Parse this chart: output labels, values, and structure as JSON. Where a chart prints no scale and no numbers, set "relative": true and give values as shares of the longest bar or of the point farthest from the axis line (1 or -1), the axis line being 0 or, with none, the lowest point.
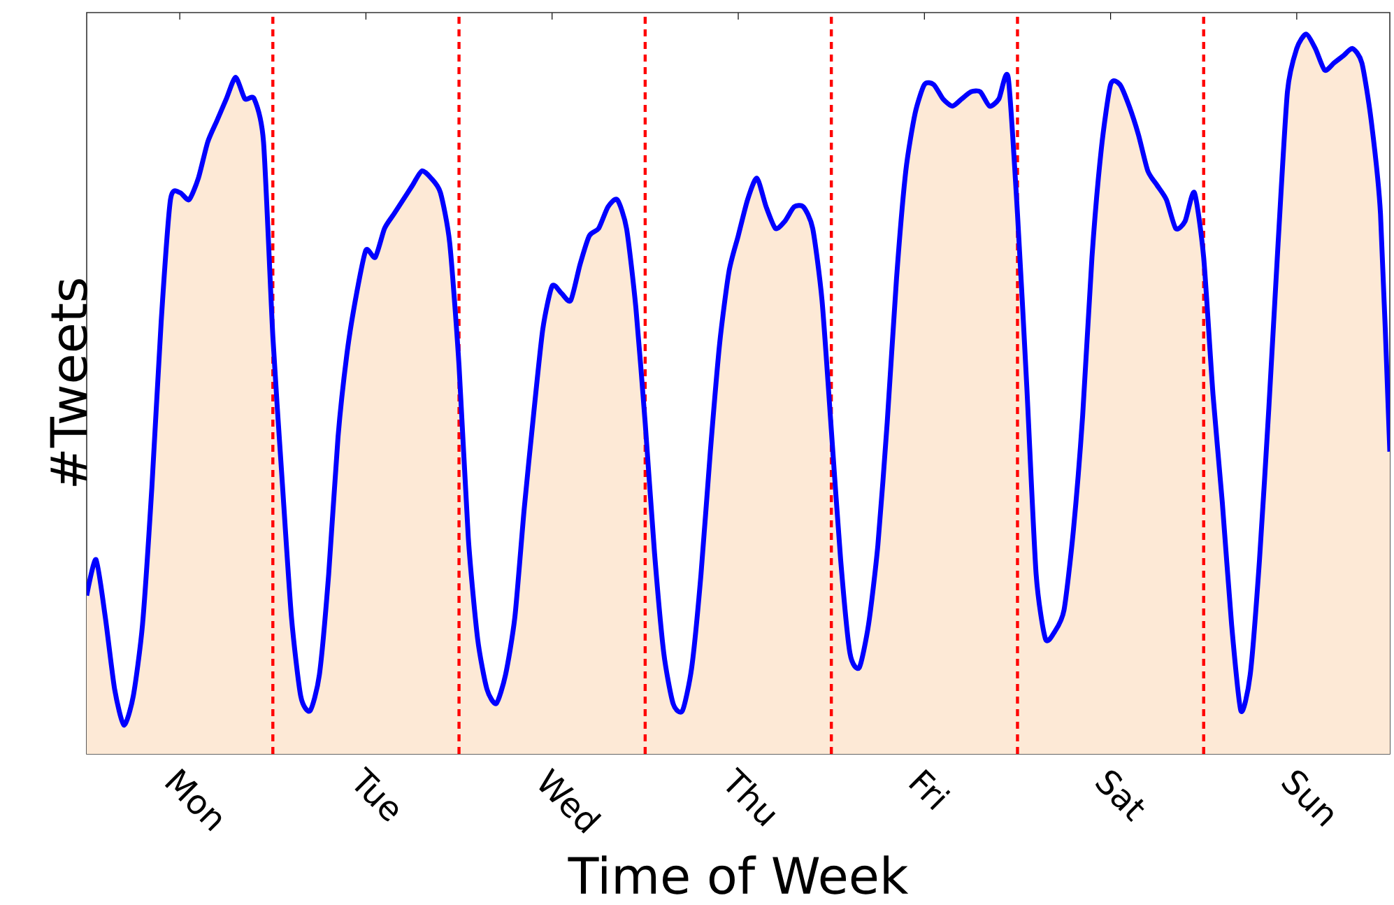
{
  "chart_data": {
    "type": "area",
    "relative": true,
    "xlabel": "Time of Week",
    "ylabel": "#Tweets",
    "categories": [
      null,
      null,
      null,
      null,
      null,
      null,
      null,
      null,
      null,
      null,
      "Mon",
      null,
      null,
      null,
      null,
      null,
      null,
      null,
      null,
      null,
      null,
      null,
      null,
      null,
      null,
      null,
      null,
      null,
      null,
      null,
      "Tue",
      null,
      null,
      null,
      null,
      null,
      null,
      null,
      null,
      null,
      null,
      null,
      null,
      null,
      null,
      null,
      null,
      null,
      null,
      null,
      "Wed",
      null,
      null,
      null,
      null,
      null,
      null,
      null,
      null,
      null,
      null,
      null,
      null,
      null,
      null,
      null,
      null,
      null,
      null,
      null,
      "Thu",
      null,
      null,
      null,
      null,
      null,
      null,
      null,
      null,
      null,
      null,
      null,
      null,
      null,
      null,
      null,
      null,
      null,
      null,
      null,
      "Fri",
      null,
      null,
      null,
      null,
      null,
      null,
      null,
      null,
      null,
      null,
      null,
      null,
      null,
      null,
      null,
      null,
      null,
      null,
      null,
      "Sat",
      null,
      null,
      null,
      null,
      null,
      null,
      null,
      null,
      null,
      null,
      null,
      null,
      null,
      null,
      null,
      null,
      null,
      null,
      null,
      "Sun",
      null,
      null,
      null,
      null,
      null,
      null,
      null,
      null,
      null,
      null
    ],
    "tick_labels": "x",
    "grid": false,
    "line_style": "solid",
    "marker": "none",
    "series": [
      {
        "color": "#0000ff",
        "values": [
          0.22,
          0.27,
          0.19,
          0.09,
          0.04,
          0.08,
          0.18,
          0.37,
          0.6,
          0.77,
          0.78,
          0.77,
          0.8,
          0.85,
          0.88,
          0.91,
          0.94,
          0.91,
          0.91,
          0.85,
          0.58,
          0.38,
          0.19,
          0.08,
          0.06,
          0.11,
          0.25,
          0.44,
          0.56,
          0.64,
          0.7,
          0.69,
          0.73,
          0.75,
          0.77,
          0.79,
          0.81,
          0.8,
          0.78,
          0.71,
          0.54,
          0.3,
          0.16,
          0.09,
          0.07,
          0.11,
          0.19,
          0.34,
          0.47,
          0.59,
          0.65,
          0.64,
          0.63,
          0.68,
          0.72,
          0.73,
          0.76,
          0.77,
          0.73,
          0.62,
          0.46,
          0.28,
          0.14,
          0.07,
          0.06,
          0.12,
          0.25,
          0.42,
          0.57,
          0.67,
          0.72,
          0.77,
          0.8,
          0.76,
          0.73,
          0.74,
          0.76,
          0.76,
          0.73,
          0.63,
          0.45,
          0.27,
          0.14,
          0.12,
          0.18,
          0.29,
          0.46,
          0.66,
          0.81,
          0.89,
          0.93,
          0.93,
          0.91,
          0.9,
          0.91,
          0.92,
          0.92,
          0.9,
          0.91,
          0.94,
          0.75,
          0.51,
          0.25,
          0.16,
          0.17,
          0.2,
          0.31,
          0.47,
          0.69,
          0.84,
          0.93,
          0.93,
          0.9,
          0.86,
          0.81,
          0.79,
          0.77,
          0.73,
          0.74,
          0.78,
          0.69,
          0.5,
          0.35,
          0.18,
          0.06,
          0.11,
          0.27,
          0.48,
          0.71,
          0.92,
          0.98,
          1.0,
          0.98,
          0.95,
          0.96,
          0.97,
          0.98,
          0.96,
          0.88,
          0.75,
          0.42
        ]
      }
    ]
  }
}
